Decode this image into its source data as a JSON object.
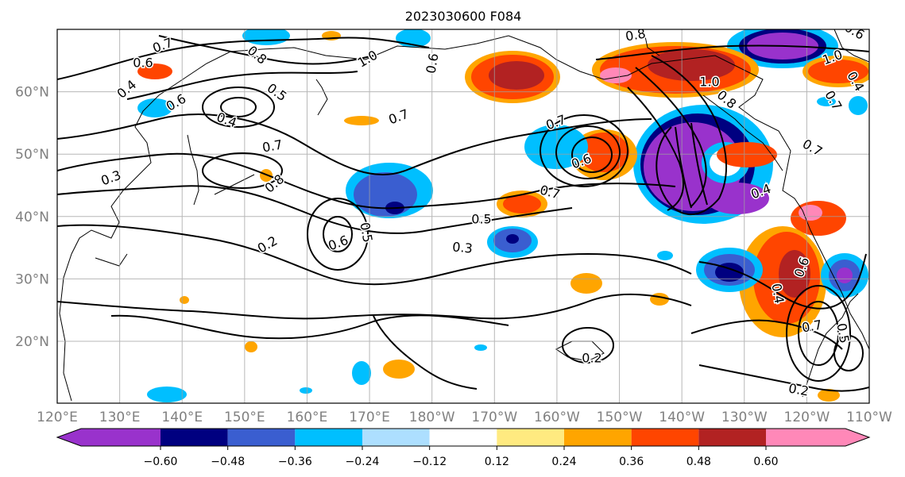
{
  "title": "2023030600 F084",
  "map": {
    "lon_labels": [
      "120°E",
      "130°E",
      "140°E",
      "150°E",
      "160°E",
      "170°E",
      "180°W",
      "170°W",
      "160°W",
      "150°W",
      "140°W",
      "130°W",
      "120°W",
      "110°W"
    ],
    "lat_labels": [
      "20°N",
      "30°N",
      "40°N",
      "50°N",
      "60°N"
    ],
    "colors": {
      "label_gray": "#808080",
      "grid": "#a0a0a0",
      "contour": "#000000",
      "land_outline": "#000000"
    }
  },
  "colorbar": {
    "bins": [
      "#9932CC",
      "#000080",
      "#3A5ED0",
      "#00BFFF",
      "#ADDFFF",
      "#FFFFFF",
      "#FFEA80",
      "#FFA500",
      "#FF4500",
      "#B22222",
      "#FF88B8"
    ],
    "tick_labels": [
      "-0.60",
      "-0.48",
      "-0.36",
      "-0.24",
      "-0.12",
      "0.12",
      "0.24",
      "0.36",
      "0.48",
      "0.60"
    ]
  },
  "contours": {
    "labels": [
      "0.7",
      "0.8",
      "1.0",
      "0.6",
      "0.6",
      "0.4",
      "0.5",
      "0.6",
      "0.4",
      "0.7",
      "0.7",
      "0.3",
      "0.8",
      "0.2",
      "0.6",
      "0.5",
      "0.5",
      "0.3",
      "0.7",
      "0.7",
      "0.6",
      "0.8",
      "1.0",
      "1.0",
      "0.8",
      "0.6",
      "0.7",
      "0.7",
      "0.4",
      "0.7",
      "0.5",
      "0.2",
      "0.2",
      "0.4",
      "0.4",
      "0.6"
    ]
  }
}
